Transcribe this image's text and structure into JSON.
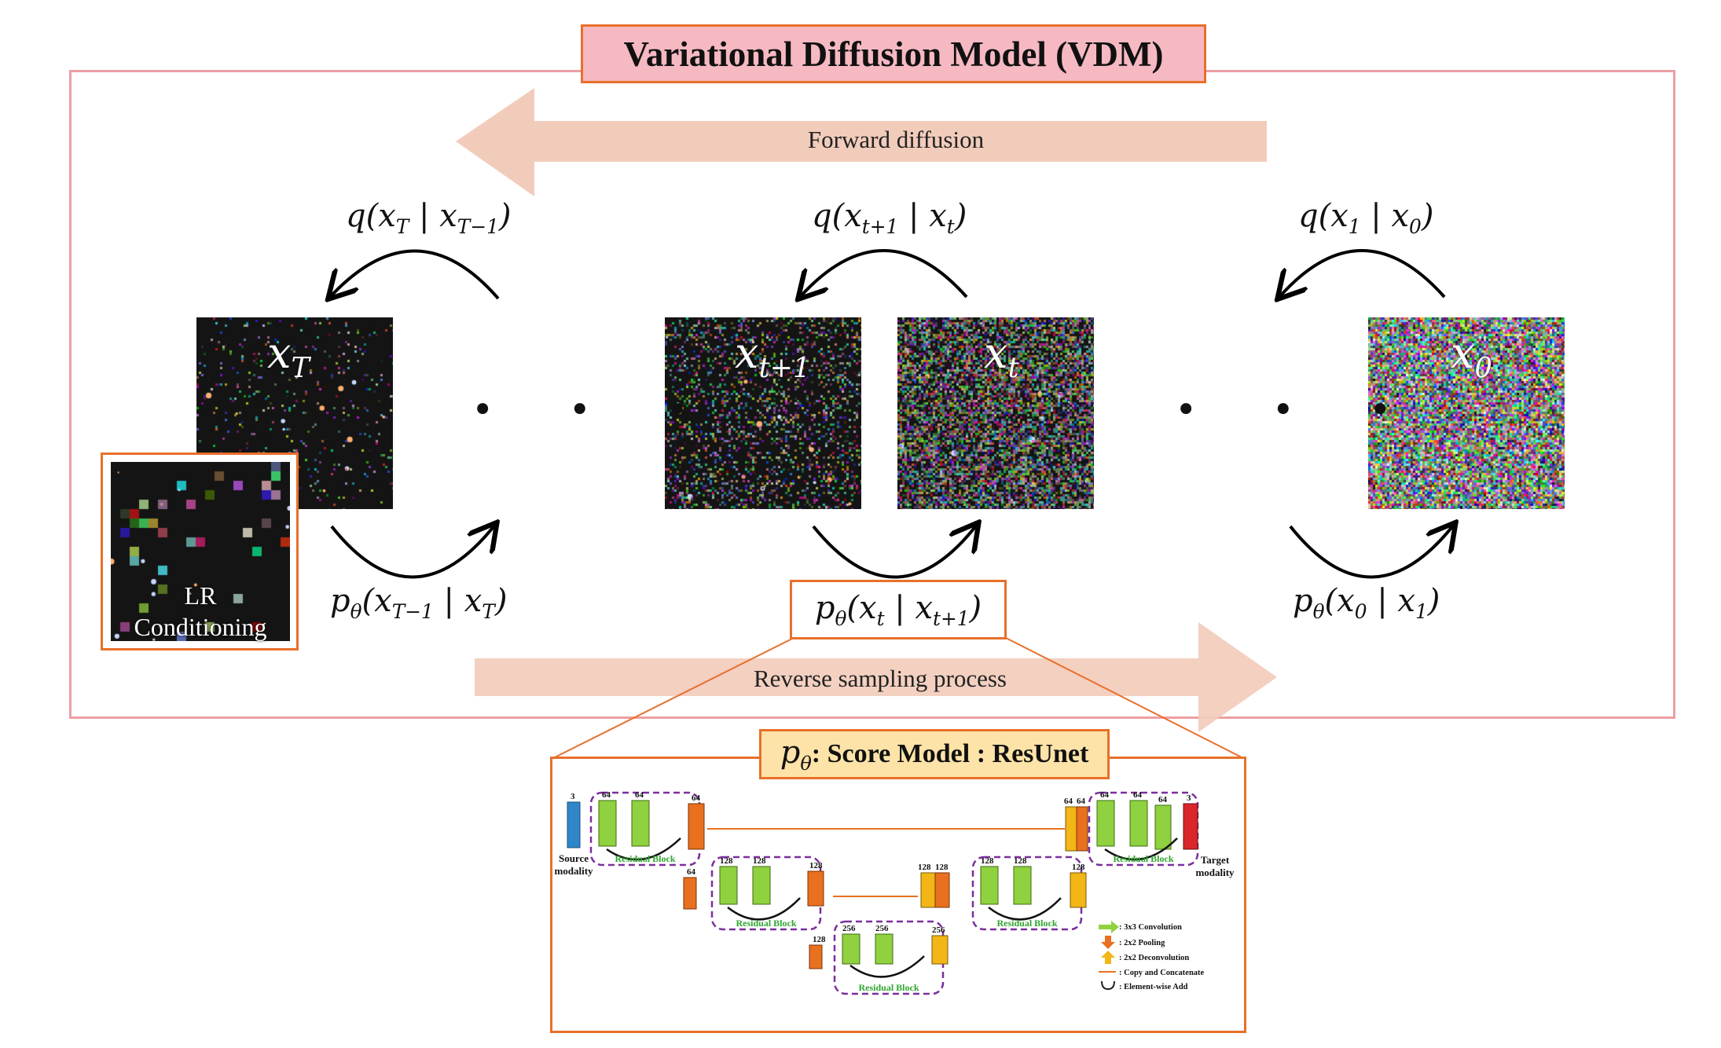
{
  "title": "Variational Diffusion Model (VDM)",
  "forward_arrow": {
    "label": "Forward diffusion"
  },
  "reverse_arrow": {
    "label": "Reverse sampling process"
  },
  "forward_equations": [
    {
      "id": "q-T",
      "fn": "q(",
      "a": "x",
      "a_sub": "T",
      "sep": " | ",
      "b": "x",
      "b_sub": "T−1",
      "close": ")"
    },
    {
      "id": "q-t",
      "fn": "q(",
      "a": "x",
      "a_sub": "t+1",
      "sep": " | ",
      "b": "x",
      "b_sub": "t",
      "close": ")"
    },
    {
      "id": "q-1",
      "fn": "q(",
      "a": "x",
      "a_sub": "1",
      "sep": " | ",
      "b": "x",
      "b_sub": "0",
      "close": ")"
    }
  ],
  "reverse_equations": [
    {
      "id": "p-T",
      "fn": "p",
      "fn_sub": "θ",
      "open": "(",
      "a": "x",
      "a_sub": "T−1",
      "sep": " | ",
      "b": "x",
      "b_sub": "T",
      "close": ")"
    },
    {
      "id": "p-t",
      "fn": "p",
      "fn_sub": "θ",
      "open": "(",
      "a": "x",
      "a_sub": "t",
      "sep": " | ",
      "b": "x",
      "b_sub": "t+1",
      "close": ")"
    },
    {
      "id": "p-0",
      "fn": "p",
      "fn_sub": "θ",
      "open": "(",
      "a": "x",
      "a_sub": "0",
      "sep": " | ",
      "b": "x",
      "b_sub": "1",
      "close": ")"
    }
  ],
  "panels": [
    {
      "id": "xT",
      "var": "x",
      "sub": "T",
      "noise": 0.05
    },
    {
      "id": "xt1",
      "var": "x",
      "sub": "t+1",
      "noise": 0.25
    },
    {
      "id": "xt",
      "var": "x",
      "sub": "t",
      "noise": 0.65
    },
    {
      "id": "x0",
      "var": "x",
      "sub": "0",
      "noise": 1.0
    }
  ],
  "dots": "• • •",
  "lr_conditioning": {
    "line1": "LR",
    "line2": "Conditioning"
  },
  "score_model": {
    "symbol": "p",
    "symbol_sub": "θ",
    "label": ": Score Model : ResUnet"
  },
  "resunet": {
    "source_label_1": "Source",
    "source_label_2": "modality",
    "target_label_1": "Target",
    "target_label_2": "modality",
    "residual_block": "Residual Block",
    "channels": {
      "c3": "3",
      "c64": "64",
      "c128": "128",
      "c256": "256"
    },
    "legend": [
      {
        "icon": "green-arrow-icon",
        "text": ": 3x3 Convolution",
        "color": "#8fd13f"
      },
      {
        "icon": "orange-down-arrow-icon",
        "text": ": 2x2 Pooling",
        "color": "#e8701f"
      },
      {
        "icon": "yellow-up-arrow-icon",
        "text": ": 2x2 Deconvolution",
        "color": "#f2b616"
      },
      {
        "icon": "orange-line-arrow-icon",
        "text": ": Copy and Concatenate",
        "color": "#e8701f"
      },
      {
        "icon": "element-add-icon",
        "text": ": Element-wise Add",
        "color": "#222222"
      }
    ]
  },
  "colors": {
    "frame": "#ec9fa3",
    "accent_orange": "#e8702a",
    "title_fill": "#f6b9c2",
    "big_arrow": "#f2ccbb",
    "score_title_fill": "#fde3a7",
    "residual_dash": "#7b2f9e",
    "block_green": "#8fd13f",
    "block_orange": "#e8701f",
    "block_yellow": "#f2b616",
    "block_blue": "#2f86c9",
    "block_red": "#d9262a"
  }
}
